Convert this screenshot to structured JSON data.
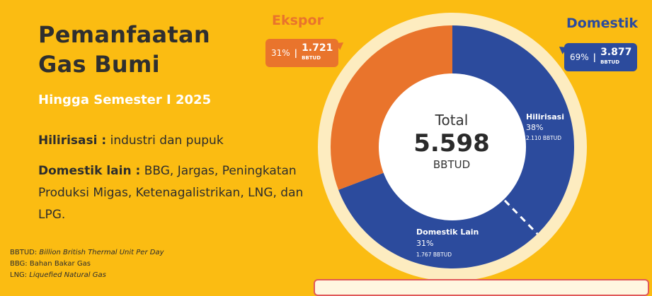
{
  "header": {
    "title_line1": "Pemanfaatan",
    "title_line2": "Gas Bumi",
    "subtitle": "Hingga Semester I 2025"
  },
  "description": {
    "hilirisasi_term": "Hilirisasi :",
    "hilirisasi_text": "industri dan pupuk",
    "domestik_term": "Domestik lain :",
    "domestik_text": "BBG, Jargas, Peningkatan Produksi Migas, Ketenagalistrikan, LNG, dan LPG."
  },
  "notes": {
    "bbtud_term": "BBTUD:",
    "bbtud_def": "Billion British Thermal Unit Per Day",
    "bbg": "BBG: Bahan Bakar Gas",
    "lng_term": "LNG:",
    "lng_def": "Liquefied Natural Gas"
  },
  "colors": {
    "background": "#fbbc12",
    "ekspor": "#e9742c",
    "domestik": "#2c4b9d",
    "ring": "#fdecc0"
  },
  "chart_data": {
    "type": "pie",
    "style": "donut",
    "total": {
      "label": "Total",
      "value": "5.598",
      "unit": "BBTUD"
    },
    "groups": [
      {
        "name": "Ekspor",
        "percent": "31%",
        "value": "1.721",
        "unit": "BBTUD"
      },
      {
        "name": "Domestik",
        "percent": "69%",
        "value": "3.877",
        "unit": "BBTUD"
      }
    ],
    "segments": [
      {
        "name": "Ekspor",
        "percent_label": "",
        "value_label": "",
        "value": 1721,
        "color": "#e9742c"
      },
      {
        "name": "Hilirisasi",
        "percent_label": "38%",
        "value_label": "2.110 BBTUD",
        "value": 2110,
        "color": "#2c4b9d"
      },
      {
        "name": "Domestik Lain",
        "percent_label": "31%",
        "value_label": "1.767 BBTUD",
        "value": 1767,
        "color": "#2c4b9d"
      }
    ]
  }
}
